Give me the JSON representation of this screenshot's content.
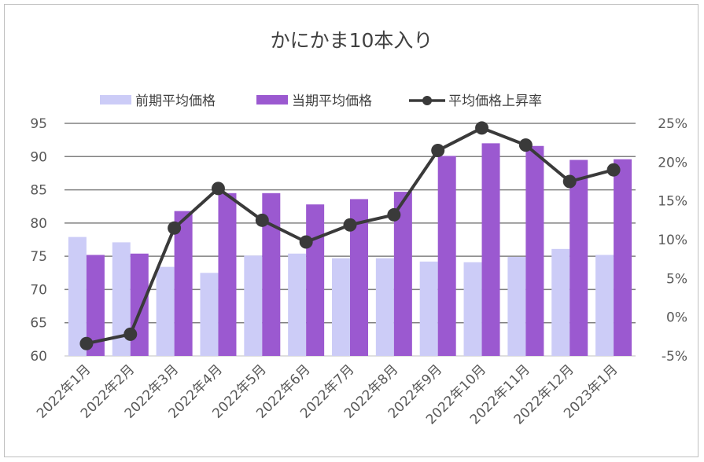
{
  "chart_data": {
    "type": "bar",
    "title": "かにかま10本入り",
    "categories": [
      "2022年1月",
      "2022年2月",
      "2022年3月",
      "2022年4月",
      "2022年5月",
      "2022年6月",
      "2022年7月",
      "2022年8月",
      "2022年9月",
      "2022年10月",
      "2022年11月",
      "2022年12月",
      "2023年1月"
    ],
    "series": [
      {
        "name": "前期平均価格",
        "kind": "bar",
        "axis": "left",
        "color": "#ccccf7",
        "values": [
          77.9,
          77.1,
          73.4,
          72.5,
          75.1,
          75.4,
          74.7,
          74.7,
          74.2,
          74.1,
          74.9,
          76.1,
          75.2
        ]
      },
      {
        "name": "当期平均価格",
        "kind": "bar",
        "axis": "left",
        "color": "#9b59d0",
        "values": [
          75.2,
          75.4,
          81.8,
          84.5,
          84.5,
          82.8,
          83.6,
          84.7,
          90.1,
          92.0,
          91.6,
          89.5,
          89.6
        ]
      },
      {
        "name": "平均価格上昇率",
        "kind": "line",
        "axis": "right",
        "color": "#3a3a3a",
        "values": [
          -3.4,
          -2.2,
          11.5,
          16.6,
          12.5,
          9.7,
          11.9,
          13.2,
          21.5,
          24.4,
          22.2,
          17.5,
          19.0
        ]
      }
    ],
    "y_left": {
      "min": 60,
      "max": 95,
      "step": 5,
      "ticks": [
        "60",
        "65",
        "70",
        "75",
        "80",
        "85",
        "90",
        "95"
      ]
    },
    "y_right": {
      "min": -5,
      "max": 25,
      "step": 5,
      "ticks": [
        "-5%",
        "0%",
        "5%",
        "10%",
        "15%",
        "20%",
        "25%"
      ]
    },
    "grid": true,
    "legend_position": "top"
  }
}
